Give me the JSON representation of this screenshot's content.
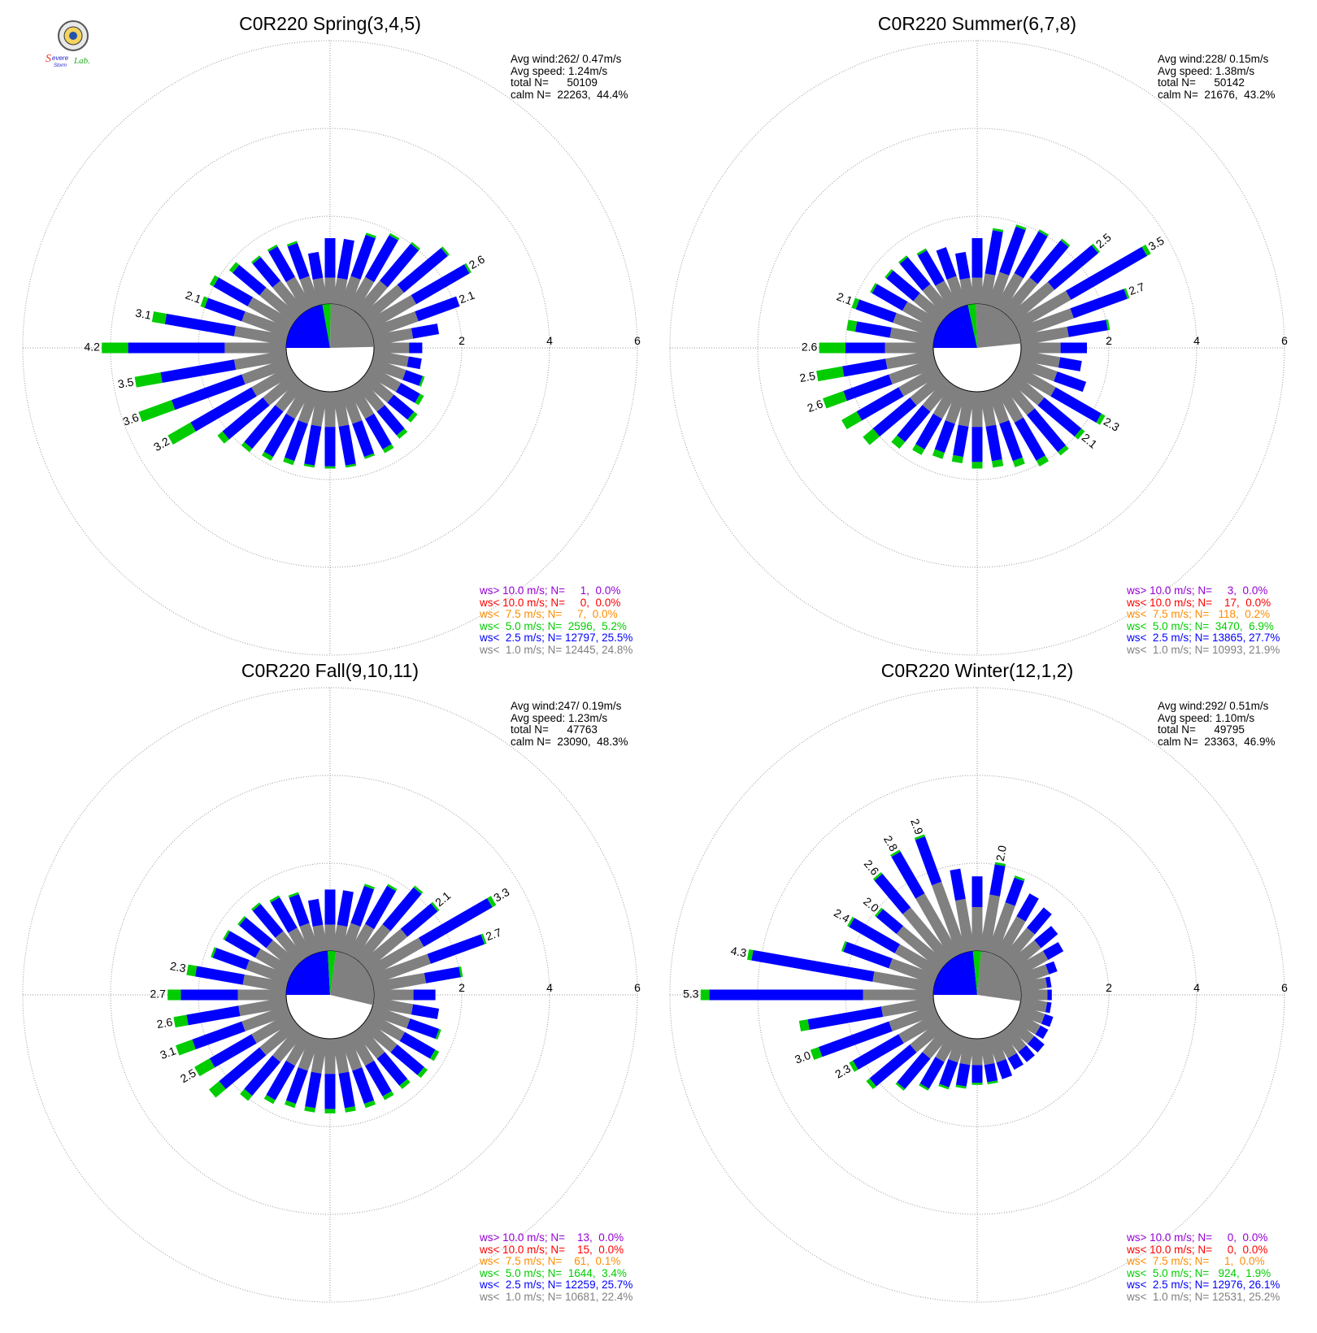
{
  "logo": {
    "text": "Severe Storm Lab."
  },
  "colors": {
    "calm": "#808080",
    "bin_1": "#808080",
    "bin_2_5": "#0000ff",
    "bin_5": "#00cc00",
    "bin_7_5": "#ff8c00",
    "bin_10": "#ff0000",
    "bin_gt10": "#9400d3",
    "grid": "#000000"
  },
  "panels": [
    {
      "title": "C0R220 Spring(3,4,5)",
      "stats": [
        "Avg wind:262/ 0.47m/s",
        "Avg speed: 1.24m/s",
        "total N=      50109",
        "calm N=  22263,  44.4%"
      ],
      "legend": [
        "ws> 10.0 m/s; N=     1,  0.0%",
        "ws< 10.0 m/s; N=     0,  0.0%",
        "ws<  7.5 m/s; N=     7,  0.0%",
        "ws<  5.0 m/s; N=  2596,  5.2%",
        "ws<  2.5 m/s; N= 12797, 25.5%",
        "ws<  1.0 m/s; N= 12445, 24.8%"
      ],
      "ring_labels": [
        "2",
        "4",
        "6"
      ],
      "sector_labels": [
        {
          "dir": 60,
          "text": "2.6"
        },
        {
          "dir": 70,
          "text": "2.1"
        },
        {
          "dir": 290,
          "text": "2.1"
        },
        {
          "dir": 280,
          "text": "3.1"
        },
        {
          "dir": 270,
          "text": "4.2"
        },
        {
          "dir": 260,
          "text": "3.5"
        },
        {
          "dir": 250,
          "text": "3.6"
        },
        {
          "dir": 240,
          "text": "3.2"
        }
      ]
    },
    {
      "title": "C0R220 Summer(6,7,8)",
      "stats": [
        "Avg wind:228/ 0.15m/s",
        "Avg speed: 1.38m/s",
        "total N=      50142",
        "calm N=  21676,  43.2%"
      ],
      "legend": [
        "ws> 10.0 m/s; N=     3,  0.0%",
        "ws< 10.0 m/s; N=    17,  0.0%",
        "ws<  7.5 m/s; N=   118,  0.2%",
        "ws<  5.0 m/s; N=  3470,  6.9%",
        "ws<  2.5 m/s; N= 13865, 27.7%",
        "ws<  1.0 m/s; N= 10993, 21.9%"
      ],
      "ring_labels": [
        "2",
        "4",
        "6"
      ],
      "sector_labels": [
        {
          "dir": 50,
          "text": "2.5"
        },
        {
          "dir": 60,
          "text": "3.5"
        },
        {
          "dir": 70,
          "text": "2.7"
        },
        {
          "dir": 120,
          "text": "2.3"
        },
        {
          "dir": 130,
          "text": "2.1"
        },
        {
          "dir": 290,
          "text": "2.1"
        },
        {
          "dir": 270,
          "text": "2.6"
        },
        {
          "dir": 260,
          "text": "2.5"
        },
        {
          "dir": 250,
          "text": "2.6"
        }
      ]
    },
    {
      "title": "C0R220 Fall(9,10,11)",
      "stats": [
        "Avg wind:247/ 0.19m/s",
        "Avg speed: 1.23m/s",
        "total N=      47763",
        "calm N=  23090,  48.3%"
      ],
      "legend": [
        "ws> 10.0 m/s; N=    13,  0.0%",
        "ws< 10.0 m/s; N=    15,  0.0%",
        "ws<  7.5 m/s; N=    61,  0.1%",
        "ws<  5.0 m/s; N=  1644,  3.4%",
        "ws<  2.5 m/s; N= 12259, 25.7%",
        "ws<  1.0 m/s; N= 10681, 22.4%"
      ],
      "ring_labels": [
        "2",
        "4",
        "6"
      ],
      "sector_labels": [
        {
          "dir": 50,
          "text": "2.1"
        },
        {
          "dir": 60,
          "text": "3.3"
        },
        {
          "dir": 70,
          "text": "2.7"
        },
        {
          "dir": 280,
          "text": "2.3"
        },
        {
          "dir": 270,
          "text": "2.7"
        },
        {
          "dir": 260,
          "text": "2.6"
        },
        {
          "dir": 250,
          "text": "3.1"
        },
        {
          "dir": 240,
          "text": "2.5"
        }
      ]
    },
    {
      "title": "C0R220 Winter(12,1,2)",
      "stats": [
        "Avg wind:292/ 0.51m/s",
        "Avg speed: 1.10m/s",
        "total N=      49795",
        "calm N=  23363,  46.9%"
      ],
      "legend": [
        "ws> 10.0 m/s; N=     0,  0.0%",
        "ws< 10.0 m/s; N=     0,  0.0%",
        "ws<  7.5 m/s; N=     1,  0.0%",
        "ws<  5.0 m/s; N=   924,  1.9%",
        "ws<  2.5 m/s; N= 12976, 26.1%",
        "ws<  1.0 m/s; N= 12531, 25.2%"
      ],
      "ring_labels": [
        "2",
        "4",
        "6"
      ],
      "sector_labels": [
        {
          "dir": 10,
          "text": "2.0"
        },
        {
          "dir": 340,
          "text": "2.9"
        },
        {
          "dir": 330,
          "text": "2.8"
        },
        {
          "dir": 320,
          "text": "2.6"
        },
        {
          "dir": 310,
          "text": "2.0"
        },
        {
          "dir": 300,
          "text": "2.4"
        },
        {
          "dir": 280,
          "text": "4.3"
        },
        {
          "dir": 270,
          "text": "5.3"
        },
        {
          "dir": 250,
          "text": "3.0"
        },
        {
          "dir": 240,
          "text": "2.3"
        }
      ]
    }
  ],
  "chart_data": [
    {
      "type": "windrose",
      "title": "C0R220 Spring(3,4,5)",
      "radial_unit": "percent",
      "rings": [
        2,
        4,
        6
      ],
      "calm_percent": 44.4,
      "bins": [
        "<1.0",
        "<2.5",
        "<5.0",
        "<7.5",
        "<10.0",
        ">10.0"
      ],
      "directions": [
        0,
        10,
        20,
        30,
        40,
        50,
        60,
        70,
        80,
        90,
        100,
        110,
        120,
        130,
        140,
        150,
        160,
        170,
        180,
        190,
        200,
        210,
        220,
        230,
        240,
        250,
        260,
        270,
        280,
        290,
        300,
        310,
        320,
        330,
        340,
        350
      ],
      "sectors": [
        [
          0.6,
          0.9,
          0.0
        ],
        [
          0.6,
          0.9,
          0.0
        ],
        [
          0.7,
          1.0,
          0.05
        ],
        [
          0.8,
          1.1,
          0.05
        ],
        [
          0.9,
          1.1,
          0.05
        ],
        [
          1.1,
          1.3,
          0.05
        ],
        [
          1.2,
          1.4,
          0.05
        ],
        [
          1.1,
          1.0,
          0.0
        ],
        [
          0.9,
          0.6,
          0.0
        ],
        [
          0.8,
          0.3,
          0.0
        ],
        [
          0.8,
          0.3,
          0.0
        ],
        [
          0.8,
          0.4,
          0.05
        ],
        [
          0.8,
          0.5,
          0.1
        ],
        [
          0.8,
          0.6,
          0.1
        ],
        [
          0.8,
          0.7,
          0.1
        ],
        [
          0.8,
          0.8,
          0.1
        ],
        [
          0.8,
          0.8,
          0.05
        ],
        [
          0.8,
          0.9,
          0.05
        ],
        [
          0.8,
          0.9,
          0.05
        ],
        [
          0.8,
          0.9,
          0.05
        ],
        [
          0.8,
          0.9,
          0.1
        ],
        [
          0.8,
          1.0,
          0.1
        ],
        [
          0.8,
          1.1,
          0.1
        ],
        [
          0.9,
          1.2,
          0.15
        ],
        [
          1.0,
          1.6,
          0.6
        ],
        [
          1.1,
          1.7,
          0.8
        ],
        [
          1.2,
          1.7,
          0.6
        ],
        [
          1.4,
          2.2,
          0.6
        ],
        [
          1.2,
          1.6,
          0.3
        ],
        [
          1.1,
          0.9,
          0.1
        ],
        [
          1.1,
          0.9,
          0.1
        ],
        [
          1.0,
          0.8,
          0.1
        ],
        [
          0.9,
          0.7,
          0.05
        ],
        [
          0.8,
          0.8,
          0.05
        ],
        [
          0.7,
          0.8,
          0.05
        ],
        [
          0.6,
          0.6,
          0.0
        ]
      ]
    },
    {
      "type": "windrose",
      "title": "C0R220 Summer(6,7,8)",
      "radial_unit": "percent",
      "rings": [
        2,
        4,
        6
      ],
      "calm_percent": 43.2,
      "bins": [
        "<1.0",
        "<2.5",
        "<5.0",
        "<7.5",
        "<10.0",
        ">10.0"
      ],
      "directions": [
        0,
        10,
        20,
        30,
        40,
        50,
        60,
        70,
        80,
        90,
        100,
        110,
        120,
        130,
        140,
        150,
        160,
        170,
        180,
        190,
        200,
        210,
        220,
        230,
        240,
        250,
        260,
        270,
        280,
        290,
        300,
        310,
        320,
        330,
        340,
        350
      ],
      "sectors": [
        [
          0.6,
          0.9,
          0.0
        ],
        [
          0.7,
          1.0,
          0.05
        ],
        [
          0.8,
          1.1,
          0.05
        ],
        [
          0.9,
          1.1,
          0.05
        ],
        [
          1.0,
          1.1,
          0.05
        ],
        [
          1.2,
          1.3,
          0.05
        ],
        [
          1.4,
          2.0,
          0.1
        ],
        [
          1.3,
          1.3,
          0.05
        ],
        [
          1.1,
          0.9,
          0.05
        ],
        [
          0.9,
          0.6,
          0.0
        ],
        [
          0.9,
          0.5,
          0.0
        ],
        [
          0.9,
          0.7,
          0.0
        ],
        [
          1.0,
          1.2,
          0.1
        ],
        [
          0.9,
          1.1,
          0.1
        ],
        [
          0.9,
          1.1,
          0.1
        ],
        [
          0.9,
          1.0,
          0.15
        ],
        [
          0.8,
          0.9,
          0.15
        ],
        [
          0.8,
          0.8,
          0.15
        ],
        [
          0.8,
          0.8,
          0.15
        ],
        [
          0.8,
          0.7,
          0.15
        ],
        [
          0.8,
          0.7,
          0.15
        ],
        [
          0.8,
          0.8,
          0.15
        ],
        [
          0.8,
          0.9,
          0.2
        ],
        [
          0.9,
          1.1,
          0.3
        ],
        [
          1.0,
          1.1,
          0.4
        ],
        [
          1.1,
          1.1,
          0.5
        ],
        [
          1.1,
          1.0,
          0.6
        ],
        [
          1.1,
          0.9,
          0.6
        ],
        [
          1.0,
          0.8,
          0.2
        ],
        [
          1.0,
          0.9,
          0.1
        ],
        [
          0.9,
          0.8,
          0.05
        ],
        [
          0.8,
          0.8,
          0.05
        ],
        [
          0.8,
          0.8,
          0.05
        ],
        [
          0.7,
          0.8,
          0.05
        ],
        [
          0.7,
          0.7,
          0.0
        ],
        [
          0.6,
          0.6,
          0.0
        ]
      ]
    },
    {
      "type": "windrose",
      "title": "C0R220 Fall(9,10,11)",
      "radial_unit": "percent",
      "rings": [
        2,
        4,
        6
      ],
      "calm_percent": 48.3,
      "bins": [
        "<1.0",
        "<2.5",
        "<5.0",
        "<7.5",
        "<10.0",
        ">10.0"
      ],
      "directions": [
        0,
        10,
        20,
        30,
        40,
        50,
        60,
        70,
        80,
        90,
        100,
        110,
        120,
        130,
        140,
        150,
        160,
        170,
        180,
        190,
        200,
        210,
        220,
        230,
        240,
        250,
        260,
        270,
        280,
        290,
        300,
        310,
        320,
        330,
        340,
        350
      ],
      "sectors": [
        [
          0.6,
          0.8,
          0.0
        ],
        [
          0.6,
          0.8,
          0.0
        ],
        [
          0.7,
          0.9,
          0.05
        ],
        [
          0.8,
          1.0,
          0.05
        ],
        [
          1.0,
          1.1,
          0.05
        ],
        [
          1.2,
          0.9,
          0.05
        ],
        [
          1.4,
          1.8,
          0.1
        ],
        [
          1.4,
          1.3,
          0.05
        ],
        [
          1.2,
          0.8,
          0.05
        ],
        [
          0.9,
          0.5,
          0.0
        ],
        [
          0.9,
          0.6,
          0.0
        ],
        [
          0.9,
          0.7,
          0.05
        ],
        [
          0.9,
          0.8,
          0.1
        ],
        [
          0.9,
          0.8,
          0.1
        ],
        [
          0.8,
          0.8,
          0.1
        ],
        [
          0.8,
          0.8,
          0.1
        ],
        [
          0.8,
          0.8,
          0.1
        ],
        [
          0.8,
          0.8,
          0.1
        ],
        [
          0.8,
          0.8,
          0.1
        ],
        [
          0.8,
          0.8,
          0.1
        ],
        [
          0.8,
          0.8,
          0.1
        ],
        [
          0.8,
          0.9,
          0.1
        ],
        [
          0.9,
          1.0,
          0.15
        ],
        [
          1.0,
          1.2,
          0.3
        ],
        [
          1.0,
          1.1,
          0.4
        ],
        [
          1.1,
          1.2,
          0.4
        ],
        [
          1.1,
          1.2,
          0.3
        ],
        [
          1.1,
          1.3,
          0.3
        ],
        [
          1.0,
          1.1,
          0.2
        ],
        [
          1.0,
          0.8,
          0.05
        ],
        [
          0.9,
          0.8,
          0.05
        ],
        [
          0.8,
          0.8,
          0.05
        ],
        [
          0.8,
          0.8,
          0.05
        ],
        [
          0.7,
          0.8,
          0.05
        ],
        [
          0.7,
          0.7,
          0.05
        ],
        [
          0.6,
          0.6,
          0.0
        ]
      ]
    },
    {
      "type": "windrose",
      "title": "C0R220 Winter(12,1,2)",
      "radial_unit": "percent",
      "rings": [
        2,
        4,
        6
      ],
      "calm_percent": 46.9,
      "bins": [
        "<1.0",
        "<2.5",
        "<5.0",
        "<7.5",
        "<10.0",
        ">10.0"
      ],
      "directions": [
        0,
        10,
        20,
        30,
        40,
        50,
        60,
        70,
        80,
        90,
        100,
        110,
        120,
        130,
        140,
        150,
        160,
        170,
        180,
        190,
        200,
        210,
        220,
        230,
        240,
        250,
        260,
        270,
        280,
        290,
        300,
        310,
        320,
        330,
        340,
        350
      ],
      "sectors": [
        [
          1.0,
          0.7,
          0.0
        ],
        [
          1.3,
          0.7,
          0.05
        ],
        [
          1.2,
          0.6,
          0.05
        ],
        [
          1.0,
          0.6,
          0.0
        ],
        [
          0.9,
          0.6,
          0.0
        ],
        [
          0.8,
          0.5,
          0.0
        ],
        [
          0.8,
          0.4,
          0.0
        ],
        [
          0.7,
          0.2,
          0.0
        ],
        [
          0.6,
          0.1,
          0.0
        ],
        [
          0.6,
          0.1,
          0.0
        ],
        [
          0.6,
          0.1,
          0.0
        ],
        [
          0.6,
          0.2,
          0.0
        ],
        [
          0.6,
          0.2,
          0.0
        ],
        [
          0.6,
          0.3,
          0.0
        ],
        [
          0.6,
          0.3,
          0.0
        ],
        [
          0.6,
          0.3,
          0.0
        ],
        [
          0.6,
          0.4,
          0.0
        ],
        [
          0.6,
          0.4,
          0.05
        ],
        [
          0.6,
          0.4,
          0.05
        ],
        [
          0.6,
          0.5,
          0.05
        ],
        [
          0.6,
          0.6,
          0.05
        ],
        [
          0.7,
          0.7,
          0.05
        ],
        [
          0.8,
          0.9,
          0.05
        ],
        [
          0.9,
          1.2,
          0.1
        ],
        [
          1.0,
          1.2,
          0.1
        ],
        [
          1.1,
          1.7,
          0.2
        ],
        [
          1.2,
          1.7,
          0.2
        ],
        [
          1.6,
          3.5,
          0.2
        ],
        [
          1.4,
          2.8,
          0.1
        ],
        [
          1.1,
          1.1,
          0.05
        ],
        [
          1.1,
          1.2,
          0.05
        ],
        [
          1.3,
          0.6,
          0.05
        ],
        [
          1.5,
          1.0,
          0.05
        ],
        [
          1.6,
          1.1,
          0.05
        ],
        [
          1.7,
          1.1,
          0.05
        ],
        [
          1.2,
          0.7,
          0.0
        ]
      ]
    }
  ]
}
